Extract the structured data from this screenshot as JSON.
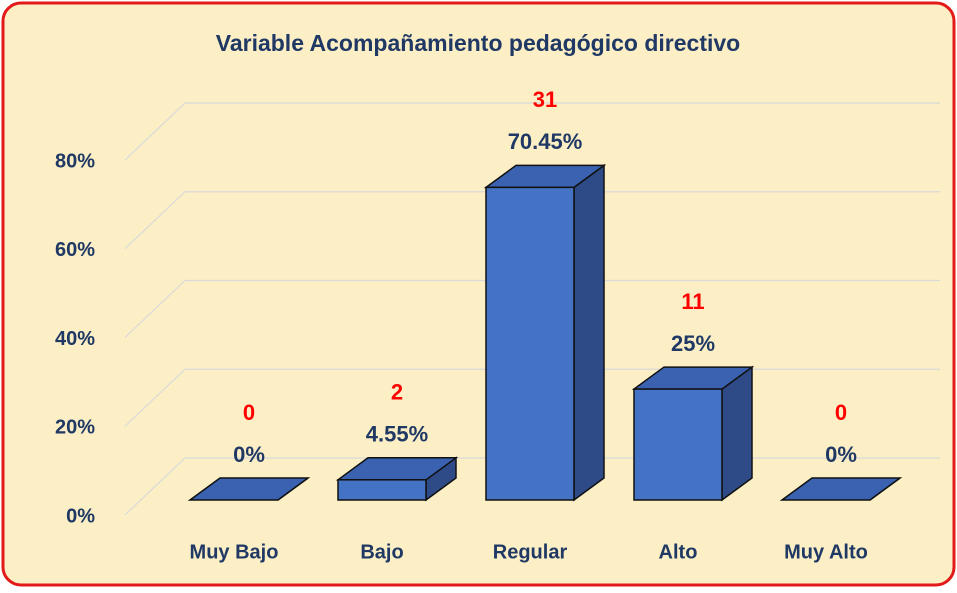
{
  "chart_data": {
    "type": "bar3d",
    "title": "Variable Acompañamiento pedagógico directivo",
    "categories": [
      "Muy Bajo",
      "Bajo",
      "Regular",
      "Alto",
      "Muy Alto"
    ],
    "values": [
      0,
      4.55,
      70.45,
      25,
      0
    ],
    "value_labels": [
      "0%",
      "4.55%",
      "70.45%",
      "25%",
      "0%"
    ],
    "counts": [
      0,
      2,
      31,
      11,
      0
    ],
    "color": "#4472c4",
    "ylim": [
      0,
      80
    ],
    "yticks": [
      {
        "value": 0,
        "label": "0%"
      },
      {
        "value": 20,
        "label": "20%"
      },
      {
        "value": 40,
        "label": "40%"
      },
      {
        "value": 60,
        "label": "60%"
      },
      {
        "value": 80,
        "label": "80%"
      }
    ],
    "grid": true
  }
}
